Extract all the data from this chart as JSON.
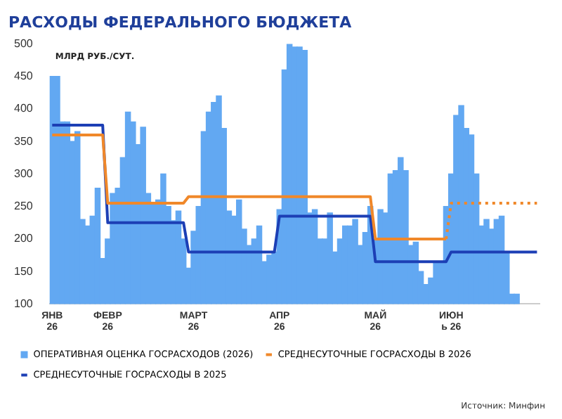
{
  "chart_data": {
    "type": "bar",
    "title": "РАСХОДЫ ФЕДЕРАЛЬНОГО БЮДЖЕТА",
    "ylabel": "МЛРД РУБ./СУТ.",
    "categories": [
      "ЯНВ\n26",
      null,
      null,
      null,
      null,
      null,
      null,
      null,
      null,
      null,
      null,
      "ФЕВР\n26",
      null,
      null,
      null,
      null,
      null,
      null,
      null,
      null,
      null,
      null,
      null,
      null,
      null,
      null,
      null,
      null,
      "МАРТ\n26",
      null,
      null,
      null,
      null,
      null,
      null,
      null,
      null,
      null,
      null,
      null,
      null,
      null,
      null,
      null,
      null,
      "АПР\n26",
      null,
      null,
      null,
      null,
      null,
      null,
      null,
      null,
      null,
      null,
      null,
      null,
      null,
      null,
      null,
      null,
      null,
      null,
      "МАЙ\n26",
      null,
      null,
      null,
      null,
      null,
      null,
      null,
      null,
      null,
      null,
      null,
      null,
      null,
      null,
      "ИЮН\nь 26",
      null,
      null,
      null,
      null,
      null,
      null,
      null,
      null,
      null,
      null,
      null,
      null,
      null,
      null,
      null,
      null,
      null
    ],
    "series": [
      {
        "name": "ОПЕРАТИВНАЯ ОЦЕНКА ГОСРАСХОДОВ (2026)",
        "color": "#62a8f2",
        "values": [
          450,
          450,
          380,
          380,
          350,
          365,
          230,
          220,
          235,
          278,
          170,
          200,
          270,
          278,
          325,
          395,
          380,
          345,
          372,
          270,
          255,
          260,
          300,
          250,
          228,
          243,
          200,
          155,
          212,
          250,
          365,
          395,
          410,
          420,
          370,
          243,
          235,
          260,
          215,
          190,
          200,
          220,
          165,
          175,
          180,
          245,
          460,
          500,
          495,
          495,
          490,
          240,
          245,
          200,
          200,
          240,
          180,
          200,
          220,
          220,
          230,
          190,
          210,
          250,
          200,
          245,
          240,
          300,
          305,
          325,
          305,
          190,
          195,
          150,
          130,
          140,
          165,
          165,
          250,
          300,
          390,
          405,
          370,
          360,
          300,
          220,
          230,
          215,
          230,
          235,
          180,
          115,
          115,
          null,
          null,
          null,
          null
        ]
      },
      {
        "name": "СРЕДНЕСУТОЧНЫЕ ГОСРАСХОДЫ В 2026",
        "type": "line",
        "color": "#f0882a",
        "line_style": "solid",
        "values": [
          360,
          360,
          360,
          360,
          360,
          360,
          360,
          360,
          360,
          360,
          360,
          255,
          255,
          255,
          255,
          255,
          255,
          255,
          255,
          255,
          255,
          255,
          255,
          255,
          255,
          255,
          255,
          265,
          265,
          265,
          265,
          265,
          265,
          265,
          265,
          265,
          265,
          265,
          265,
          265,
          265,
          265,
          265,
          265,
          265,
          265,
          265,
          265,
          265,
          265,
          265,
          265,
          265,
          265,
          265,
          265,
          265,
          265,
          265,
          265,
          265,
          265,
          265,
          265,
          200,
          200,
          200,
          200,
          200,
          200,
          200,
          200,
          200,
          200,
          200,
          200,
          200,
          200,
          200,
          null,
          null,
          null,
          null,
          null,
          null,
          null,
          null,
          null,
          null,
          null,
          null,
          null,
          null,
          null,
          null,
          null,
          null
        ]
      },
      {
        "type": "line",
        "color": "#f0882a",
        "line_style": "dotted",
        "values": [
          null,
          null,
          null,
          null,
          null,
          null,
          null,
          null,
          null,
          null,
          null,
          null,
          null,
          null,
          null,
          null,
          null,
          null,
          null,
          null,
          null,
          null,
          null,
          null,
          null,
          null,
          null,
          null,
          null,
          null,
          null,
          null,
          null,
          null,
          null,
          null,
          null,
          null,
          null,
          null,
          null,
          null,
          null,
          null,
          null,
          null,
          null,
          null,
          null,
          null,
          null,
          null,
          null,
          null,
          null,
          null,
          null,
          null,
          null,
          null,
          null,
          null,
          null,
          null,
          null,
          null,
          null,
          null,
          null,
          null,
          null,
          null,
          null,
          null,
          null,
          null,
          null,
          null,
          200,
          255,
          255,
          255,
          255,
          255,
          255,
          255,
          255,
          255,
          255,
          255,
          255,
          255,
          255,
          255,
          255,
          255,
          255
        ]
      },
      {
        "name": "СРЕДНЕСУТОЧНЫЕ ГОСРАСХОДЫ В 2025",
        "type": "line",
        "color": "#1c3fb5",
        "line_style": "solid",
        "values": [
          375,
          375,
          375,
          375,
          375,
          375,
          375,
          375,
          375,
          375,
          375,
          225,
          225,
          225,
          225,
          225,
          225,
          225,
          225,
          225,
          225,
          225,
          225,
          225,
          225,
          225,
          225,
          180,
          180,
          180,
          180,
          180,
          180,
          180,
          180,
          180,
          180,
          180,
          180,
          180,
          180,
          180,
          180,
          180,
          180,
          235,
          235,
          235,
          235,
          235,
          235,
          235,
          235,
          235,
          235,
          235,
          235,
          235,
          235,
          235,
          235,
          235,
          235,
          235,
          165,
          165,
          165,
          165,
          165,
          165,
          165,
          165,
          165,
          165,
          165,
          165,
          165,
          165,
          165,
          180,
          180,
          180,
          180,
          180,
          180,
          180,
          180,
          180,
          180,
          180,
          180,
          180,
          180,
          180,
          180,
          180,
          180
        ]
      }
    ],
    "ylim": [
      100,
      500
    ],
    "yticks": [
      100,
      150,
      200,
      250,
      300,
      350,
      400,
      450,
      500
    ],
    "grid": false,
    "legend": "bottom",
    "marker": "none",
    "annotations": [
      "Источник: Минфин"
    ]
  }
}
